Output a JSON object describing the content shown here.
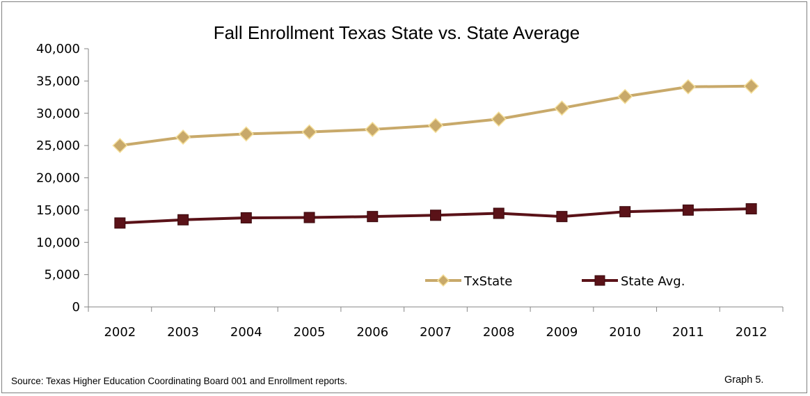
{
  "chart_data": {
    "type": "line",
    "title": "Fall Enrollment Texas State vs. State Average",
    "categories": [
      "2002",
      "2003",
      "2004",
      "2005",
      "2006",
      "2007",
      "2008",
      "2009",
      "2010",
      "2011",
      "2012"
    ],
    "series": [
      {
        "name": "TxState",
        "values": [
          25000,
          26300,
          26800,
          27100,
          27500,
          28100,
          29100,
          30800,
          32600,
          34100,
          34200
        ],
        "color": "#c8a96a",
        "marker_edge": "#f5df9a",
        "marker": "diamond"
      },
      {
        "name": "State Avg.",
        "values": [
          13000,
          13500,
          13800,
          13850,
          14000,
          14200,
          14500,
          14000,
          14750,
          15000,
          15200
        ],
        "color": "#5a1218",
        "marker": "square"
      }
    ],
    "ylim": [
      0,
      40000
    ],
    "yticks": [
      "0",
      "5,000",
      "10,000",
      "15,000",
      "20,000",
      "25,000",
      "30,000",
      "35,000",
      "40,000"
    ],
    "grid": false,
    "legend_position": "bottom-right"
  },
  "footer": {
    "source": "Source: Texas Higher Education Coordinating Board 001 and Enrollment reports.",
    "graph_label": "Graph 5."
  }
}
